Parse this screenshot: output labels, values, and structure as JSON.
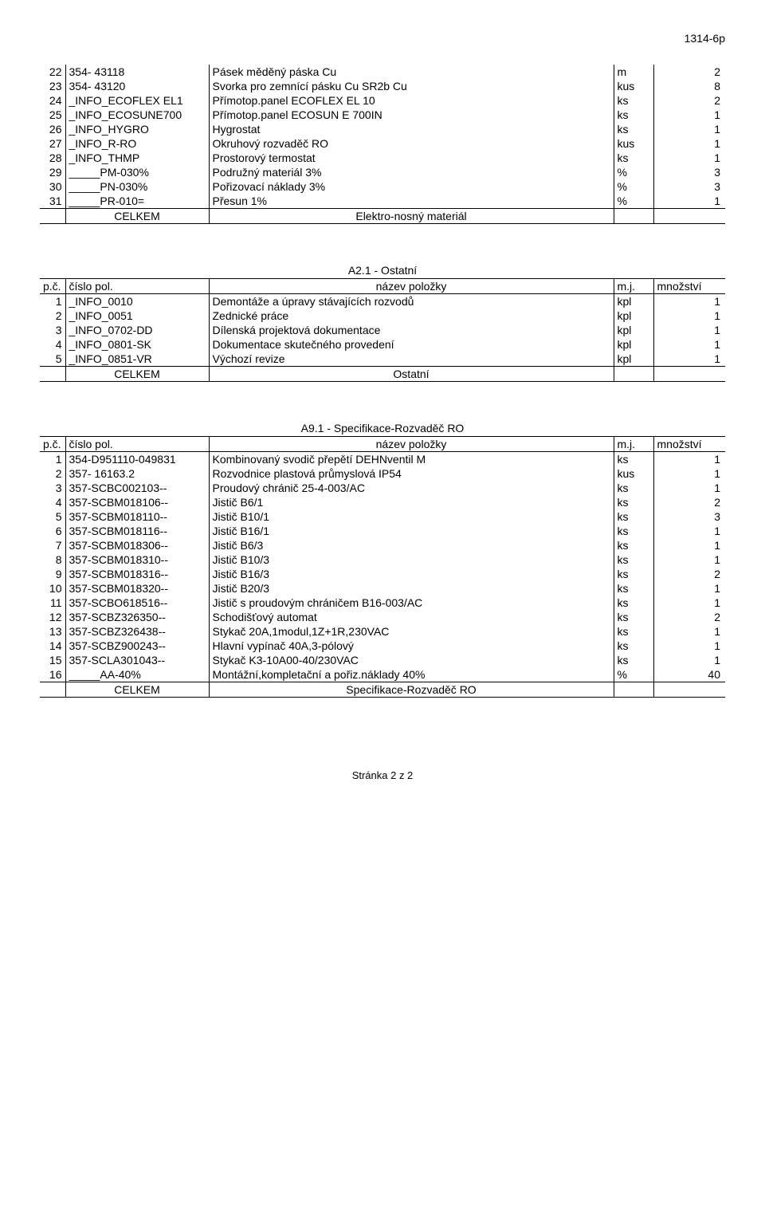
{
  "doc_code": "1314-6p",
  "footer_text": "Stránka 2 z 2",
  "header_labels": {
    "idx": "p.č.",
    "code": "číslo pol.",
    "name": "název položky",
    "unit": "m.j.",
    "qty": "množství"
  },
  "celkem_label": "CELKEM",
  "table1": {
    "rows": [
      {
        "idx": "22",
        "code": " 354- 43118",
        "name": "Pásek měděný páska Cu",
        "unit": "m",
        "qty": "2"
      },
      {
        "idx": "23",
        "code": " 354- 43120",
        "name": "Svorka pro zemnící pásku Cu SR2b Cu",
        "unit": "kus",
        "qty": "8"
      },
      {
        "idx": "24",
        "code": "_INFO_ECOFLEX EL1",
        "name": "Přímotop.panel ECOFLEX EL 10",
        "unit": "ks",
        "qty": "2"
      },
      {
        "idx": "25",
        "code": "_INFO_ECOSUNE700",
        "name": "Přímotop.panel ECOSUN E 700IN",
        "unit": "ks",
        "qty": "1"
      },
      {
        "idx": "26",
        "code": "_INFO_HYGRO",
        "name": "Hygrostat",
        "unit": "ks",
        "qty": "1"
      },
      {
        "idx": "27",
        "code": "_INFO_R-RO",
        "name": "Okruhový rozvaděč RO",
        "unit": "kus",
        "qty": "1"
      },
      {
        "idx": "28",
        "code": "_INFO_THMP",
        "name": "Prostorový termostat",
        "unit": "ks",
        "qty": "1"
      },
      {
        "idx": "29",
        "code": "_____PM-030%",
        "name": "Podružný materiál  3%",
        "unit": "%",
        "qty": "3"
      },
      {
        "idx": "30",
        "code": "_____PN-030%",
        "name": "Pořizovací náklady 3%",
        "unit": "%",
        "qty": "3"
      },
      {
        "idx": "31",
        "code": "_____PR-010=",
        "name": "Přesun 1%",
        "unit": "%",
        "qty": "1"
      }
    ],
    "footer_name": "Elektro-nosný materiál"
  },
  "table2": {
    "title": "A2.1 - Ostatní",
    "rows": [
      {
        "idx": "1",
        "code": "_INFO_0010",
        "name": "Demontáže a úpravy stávajících rozvodů",
        "unit": "kpl",
        "qty": "1"
      },
      {
        "idx": "2",
        "code": "_INFO_0051",
        "name": "Zednické práce",
        "unit": "kpl",
        "qty": "1"
      },
      {
        "idx": "3",
        "code": "_INFO_0702-DD",
        "name": "Dílenská projektová dokumentace",
        "unit": "kpl",
        "qty": "1"
      },
      {
        "idx": "4",
        "code": "_INFO_0801-SK",
        "name": "Dokumentace skutečného provedení",
        "unit": "kpl",
        "qty": "1"
      },
      {
        "idx": "5",
        "code": "_INFO_0851-VR",
        "name": "Výchozí revize",
        "unit": "kpl",
        "qty": "1"
      }
    ],
    "footer_name": "Ostatní"
  },
  "table3": {
    "title": "A9.1 - Specifikace-Rozvaděč RO",
    "rows": [
      {
        "idx": "1",
        "code": " 354-D951110-049831",
        "name": "Kombinovaný svodič přepětí DEHNventil M",
        "unit": "ks",
        "qty": "1"
      },
      {
        "idx": "2",
        "code": " 357- 16163.2",
        "name": "Rozvodnice plastová průmyslová IP54",
        "unit": "kus",
        "qty": "1"
      },
      {
        "idx": "3",
        "code": "357-SCBC002103--",
        "name": "Proudový chránič 25-4-003/AC",
        "unit": "ks",
        "qty": "1"
      },
      {
        "idx": "4",
        "code": "357-SCBM018106--",
        "name": "Jistič B6/1",
        "unit": "ks",
        "qty": "2"
      },
      {
        "idx": "5",
        "code": "357-SCBM018110--",
        "name": "Jistič B10/1",
        "unit": "ks",
        "qty": "3"
      },
      {
        "idx": "6",
        "code": "357-SCBM018116--",
        "name": "Jistič B16/1",
        "unit": "ks",
        "qty": "1"
      },
      {
        "idx": "7",
        "code": "357-SCBM018306--",
        "name": "Jistič B6/3",
        "unit": "ks",
        "qty": "1"
      },
      {
        "idx": "8",
        "code": "357-SCBM018310--",
        "name": "Jistič B10/3",
        "unit": "ks",
        "qty": "1"
      },
      {
        "idx": "9",
        "code": "357-SCBM018316--",
        "name": "Jistič B16/3",
        "unit": "ks",
        "qty": "2"
      },
      {
        "idx": "10",
        "code": "357-SCBM018320--",
        "name": "Jistič B20/3",
        "unit": "ks",
        "qty": "1"
      },
      {
        "idx": "11",
        "code": "357-SCBO618516--",
        "name": "Jistič s proudovým chráničem B16-003/AC",
        "unit": "ks",
        "qty": "1"
      },
      {
        "idx": "12",
        "code": "357-SCBZ326350--",
        "name": "Schodišťový automat",
        "unit": "ks",
        "qty": "2"
      },
      {
        "idx": "13",
        "code": "357-SCBZ326438--",
        "name": "Stykač 20A,1modul,1Z+1R,230VAC",
        "unit": "ks",
        "qty": "1"
      },
      {
        "idx": "14",
        "code": "357-SCBZ900243--",
        "name": "Hlavní vypínač 40A,3-pólový",
        "unit": "ks",
        "qty": "1"
      },
      {
        "idx": "15",
        "code": "357-SCLA301043--",
        "name": "Stykač K3-10A00-40/230VAC",
        "unit": "ks",
        "qty": "1"
      },
      {
        "idx": "16",
        "code": "_____AA-40%",
        "name": "Montážní,kompletační a pořiz.náklady 40%",
        "unit": "%",
        "qty": "40"
      }
    ],
    "footer_name": "Specifikace-Rozvaděč RO"
  }
}
